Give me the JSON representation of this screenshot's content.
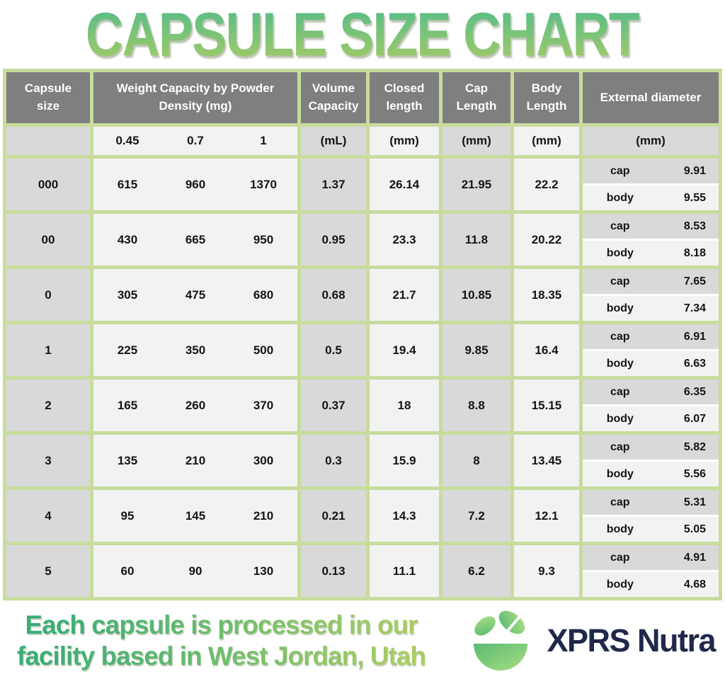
{
  "title": "CAPSULE SIZE CHART",
  "table": {
    "header": {
      "capsule_size": "Capsule size",
      "weight_capacity": "Weight Capacity by Powder Density (mg)",
      "volume_capacity": "Volume Capacity",
      "closed_length": "Closed length",
      "cap_length": "Cap Length",
      "body_length": "Body Length",
      "external_diameter": "External diameter"
    },
    "units_row": {
      "density_0_45": "0.45",
      "density_0_7": "0.7",
      "density_1": "1",
      "volume": "(mL)",
      "closed": "(mm)",
      "cap": "(mm)",
      "body": "(mm)",
      "external": "(mm)"
    },
    "ext_labels": {
      "cap": "cap",
      "body": "body"
    }
  },
  "chart_data": {
    "type": "table",
    "title": "CAPSULE SIZE CHART",
    "columns": [
      "Capsule size",
      "Weight Capacity (mg) at Powder Density 0.45",
      "Weight Capacity (mg) at Powder Density 0.7",
      "Weight Capacity (mg) at Powder Density 1",
      "Volume Capacity (mL)",
      "Closed length (mm)",
      "Cap Length (mm)",
      "Body Length (mm)",
      "External diameter cap (mm)",
      "External diameter body (mm)"
    ],
    "rows": [
      [
        "000",
        615,
        960,
        1370,
        1.37,
        26.14,
        21.95,
        22.2,
        9.91,
        9.55
      ],
      [
        "00",
        430,
        665,
        950,
        0.95,
        23.3,
        11.8,
        20.22,
        8.53,
        8.18
      ],
      [
        "0",
        305,
        475,
        680,
        0.68,
        21.7,
        10.85,
        18.35,
        7.65,
        7.34
      ],
      [
        "1",
        225,
        350,
        500,
        0.5,
        19.4,
        9.85,
        16.4,
        6.91,
        6.63
      ],
      [
        "2",
        165,
        260,
        370,
        0.37,
        18,
        8.8,
        15.15,
        6.35,
        6.07
      ],
      [
        "3",
        135,
        210,
        300,
        0.3,
        15.9,
        8,
        13.45,
        5.82,
        5.56
      ],
      [
        "4",
        95,
        145,
        210,
        0.21,
        14.3,
        7.2,
        12.1,
        5.31,
        5.05
      ],
      [
        "5",
        60,
        90,
        130,
        0.13,
        11.1,
        6.2,
        9.3,
        4.91,
        4.68
      ]
    ]
  },
  "footer": {
    "note_line1": "Each capsule is processed in our",
    "note_line2": "facility based in West Jordan, Utah",
    "brand": "XPRS Nutra"
  },
  "colors": {
    "grid_green": "#c7dc9d",
    "header_gray": "#7f7f7f",
    "cell_gray": "#d9d9d9",
    "cell_light": "#f2f2f2",
    "title_gradient_top": "#54bc8a",
    "title_gradient_bottom": "#a7cb66",
    "brand_navy": "#20294a"
  }
}
